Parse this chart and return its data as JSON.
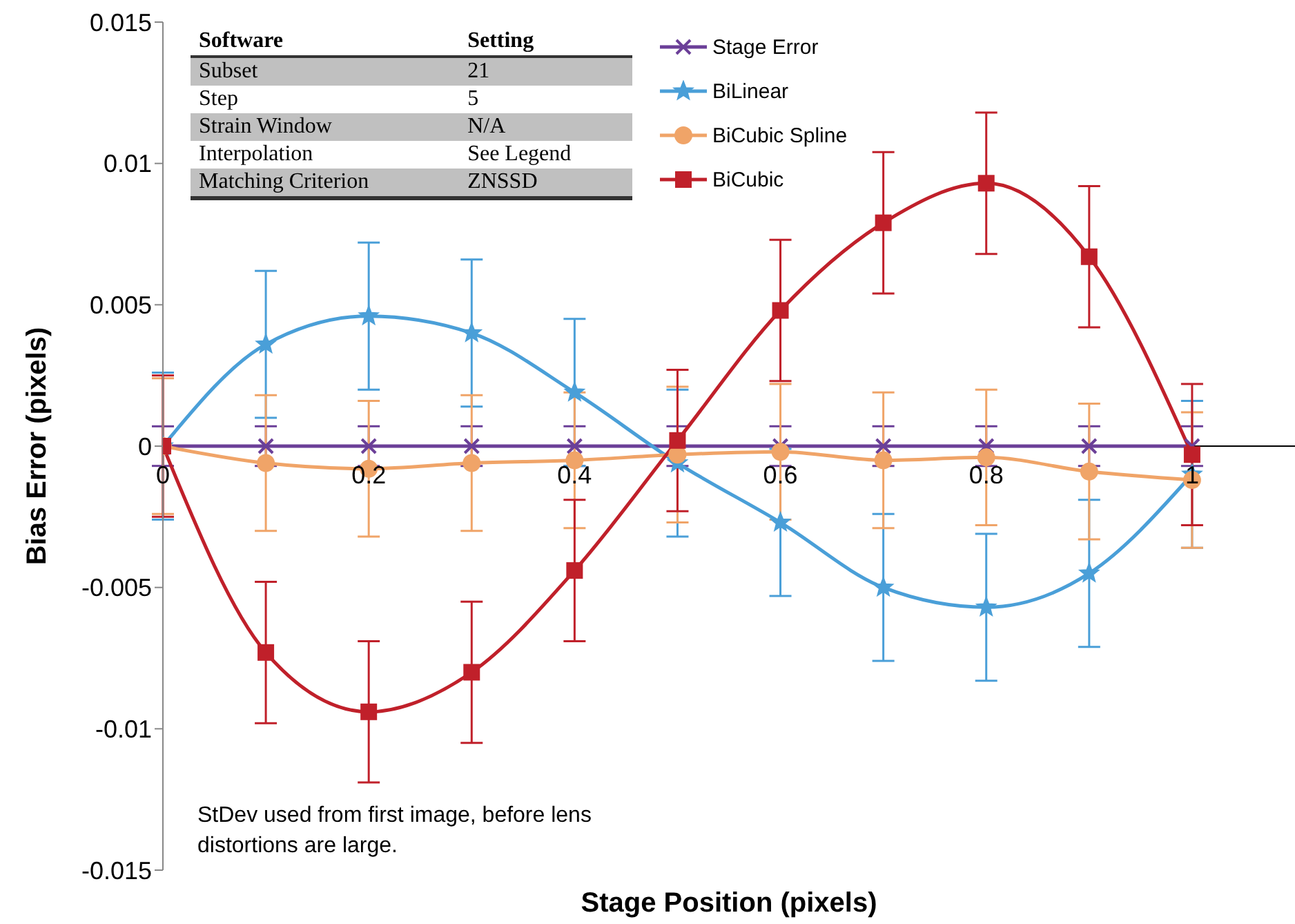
{
  "chart_data": {
    "type": "line",
    "xlabel": "Stage Position (pixels)",
    "ylabel": "Bias Error (pixels)",
    "x": [
      0,
      0.1,
      0.2,
      0.3,
      0.4,
      0.5,
      0.6,
      0.7,
      0.8,
      0.9,
      1
    ],
    "xlim": [
      0,
      1.1
    ],
    "xticks": [
      0,
      0.2,
      0.4,
      0.6,
      0.8,
      1
    ],
    "ylim": [
      -0.015,
      0.015
    ],
    "yticks": [
      -0.015,
      -0.01,
      -0.005,
      0,
      0.005,
      0.01,
      0.015
    ],
    "grid": false,
    "legend": "top right",
    "line_style": "solid",
    "series": [
      {
        "name": "Stage Error",
        "color": "#6b3f98",
        "marker": "cross",
        "values": [
          0,
          0,
          0,
          0,
          0,
          0,
          0,
          0,
          0,
          0,
          0
        ],
        "errors": [
          0.0007,
          0.0007,
          0.0007,
          0.0007,
          0.0007,
          0.0007,
          0.0007,
          0.0007,
          0.0007,
          0.0007,
          0.0007
        ]
      },
      {
        "name": "BiLinear",
        "color": "#4a9fd8",
        "marker": "star",
        "values": [
          0,
          0.0036,
          0.0046,
          0.004,
          0.0019,
          -0.0006,
          -0.0027,
          -0.005,
          -0.0057,
          -0.0045,
          -0.001
        ],
        "errors": [
          0.0026,
          0.0026,
          0.0026,
          0.0026,
          0.0026,
          0.0026,
          0.0026,
          0.0026,
          0.0026,
          0.0026,
          0.0026
        ]
      },
      {
        "name": "BiCubic Spline",
        "color": "#f0a468",
        "marker": "circle",
        "values": [
          0,
          -0.0006,
          -0.0008,
          -0.0006,
          -0.0005,
          -0.0003,
          -0.0002,
          -0.0005,
          -0.0004,
          -0.0009,
          -0.0012
        ],
        "errors": [
          0.0024,
          0.0024,
          0.0024,
          0.0024,
          0.0024,
          0.0024,
          0.0024,
          0.0024,
          0.0024,
          0.0024,
          0.0024
        ]
      },
      {
        "name": "BiCubic",
        "color": "#c0202a",
        "marker": "square",
        "values": [
          0,
          -0.0073,
          -0.0094,
          -0.008,
          -0.0044,
          0.0002,
          0.0048,
          0.0079,
          0.0093,
          0.0067,
          -0.0003
        ],
        "errors": [
          0.0025,
          0.0025,
          0.0025,
          0.0025,
          0.0025,
          0.0025,
          0.0025,
          0.0025,
          0.0025,
          0.0025,
          0.0025
        ]
      }
    ],
    "annotations": [
      "Software",
      "Setting",
      "Subset",
      "21",
      "Step",
      "5",
      "Strain Window",
      "N/A",
      "Interpolation",
      "See Legend",
      "Matching Criterion",
      "ZNSSD",
      "StDev used from first image, before lens distortions are large."
    ]
  }
}
